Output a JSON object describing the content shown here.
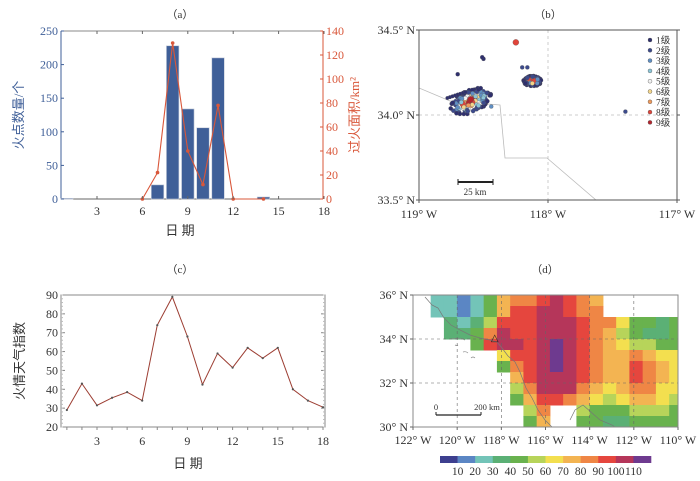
{
  "chart_data": [
    {
      "panel": "(a)",
      "type": "bar",
      "title": "（a）",
      "xlabel": "日  期",
      "ylabel": "火点数量/个",
      "y2label": "过火面积/km²",
      "x_ticks": [
        3,
        6,
        9,
        12,
        15,
        18
      ],
      "ylim": [
        0,
        250
      ],
      "y_ticks": [
        0,
        50,
        100,
        150,
        200,
        250
      ],
      "y2lim": [
        0,
        140
      ],
      "y2_ticks": [
        0,
        20,
        40,
        60,
        80,
        100,
        120,
        140
      ],
      "xlim": [
        0.7,
        18.3
      ],
      "series": [
        {
          "name": "火点数量",
          "type": "bar",
          "axis": "left",
          "color": "#3f5f98",
          "x": [
            1,
            7,
            8,
            9,
            10,
            11,
            14
          ],
          "values": [
            1,
            21,
            228,
            134,
            106,
            210,
            3
          ]
        },
        {
          "name": "过火面积",
          "type": "line",
          "axis": "right",
          "color": "#d9573a",
          "x": [
            6,
            7,
            8,
            9,
            10,
            11,
            12,
            14
          ],
          "values": [
            0,
            22,
            130,
            40,
            12,
            78,
            0,
            0
          ]
        }
      ],
      "left_axis_color": "#3f5f98",
      "right_axis_color": "#d9573a"
    },
    {
      "panel": "(b)",
      "type": "scatter",
      "title": "（b）",
      "xlabel": "",
      "ylabel": "",
      "xlim": [
        -119,
        -117
      ],
      "ylim": [
        33.5,
        34.5
      ],
      "x_ticks": [
        -119,
        -118,
        -117
      ],
      "x_tick_labels": [
        "119° W",
        "118° W",
        "117° W"
      ],
      "y_ticks": [
        33.5,
        34.0,
        34.5
      ],
      "y_tick_labels": [
        "33.5° N",
        "34.0° N",
        "34.5° N"
      ],
      "grid": true,
      "legend_position": "top-right",
      "legend": [
        {
          "label": "1级",
          "color": "#2e2f6e"
        },
        {
          "label": "2级",
          "color": "#3c4a8c"
        },
        {
          "label": "3级",
          "color": "#5f8fc4"
        },
        {
          "label": "4级",
          "color": "#8cc6d8"
        },
        {
          "label": "5级",
          "color": "#f2f2f2"
        },
        {
          "label": "6级",
          "color": "#f3d58a"
        },
        {
          "label": "7级",
          "color": "#ef9a5c"
        },
        {
          "label": "8级",
          "color": "#e0443a"
        },
        {
          "label": "9级",
          "color": "#b5242c"
        }
      ],
      "scale_bar_label": "25 km",
      "clusters": [
        {
          "lon": -118.6,
          "lat": 34.08,
          "levels": [
            1,
            2,
            3,
            4,
            5,
            6,
            7,
            8,
            9
          ],
          "extent_lon": 0.14,
          "extent_lat": 0.08
        },
        {
          "lon": -118.12,
          "lat": 34.2,
          "levels": [
            1,
            2,
            3,
            4,
            6,
            7,
            8
          ],
          "extent_lon": 0.07,
          "extent_lat": 0.03
        },
        {
          "lon": -118.25,
          "lat": 34.43,
          "levels": [
            8
          ],
          "extent_lon": 0.01,
          "extent_lat": 0.01
        }
      ],
      "isolated_points": [
        {
          "lon": -118.7,
          "lat": 34.24,
          "level": 1
        },
        {
          "lon": -118.5,
          "lat": 34.33,
          "level": 1
        },
        {
          "lon": -118.51,
          "lat": 34.34,
          "level": 1
        },
        {
          "lon": -118.2,
          "lat": 34.28,
          "level": 2
        },
        {
          "lon": -118.16,
          "lat": 34.28,
          "level": 2
        },
        {
          "lon": -117.4,
          "lat": 34.02,
          "level": 2
        },
        {
          "lon": -118.44,
          "lat": 34.05,
          "level": 3
        }
      ]
    },
    {
      "panel": "(c)",
      "type": "line",
      "title": "（c）",
      "xlabel": "日  期",
      "ylabel": "火情天气指数",
      "xlim": [
        0.5,
        18.5
      ],
      "ylim": [
        20,
        90
      ],
      "x_ticks": [
        3,
        6,
        9,
        12,
        15,
        18
      ],
      "y_ticks": [
        20,
        30,
        40,
        50,
        60,
        70,
        80,
        90
      ],
      "series": [
        {
          "name": "火情天气指数",
          "color": "#9c3d32",
          "x": [
            1,
            2,
            3,
            4,
            5,
            6,
            7,
            8,
            9,
            10,
            11,
            12,
            13,
            14,
            15,
            16,
            17,
            18
          ],
          "values": [
            29,
            43,
            31.5,
            35.5,
            38.5,
            34,
            74,
            89,
            68,
            42.5,
            59,
            51.5,
            62,
            56.5,
            62,
            40,
            34,
            30.5
          ]
        }
      ]
    },
    {
      "panel": "(d)",
      "type": "heatmap",
      "title": "（d）",
      "xlim": [
        -122,
        -110
      ],
      "ylim": [
        30,
        36
      ],
      "x_ticks": [
        -122,
        -120,
        -118,
        -116,
        -114,
        -112,
        -110
      ],
      "x_tick_labels": [
        "122° W",
        "120° W",
        "118° W",
        "116° W",
        "114° W",
        "112° W",
        "110° W"
      ],
      "y_ticks": [
        30,
        32,
        34,
        36
      ],
      "y_tick_labels": [
        "30° N",
        "32° N",
        "34° N",
        "36° N"
      ],
      "grid": true,
      "scale_bar": {
        "start_label": "0",
        "end_label": "200 km"
      },
      "colorbar": {
        "ticks": [
          10,
          20,
          30,
          40,
          50,
          60,
          70,
          80,
          90,
          100,
          110
        ],
        "colors": [
          "#3d3f8f",
          "#5b86c4",
          "#73c4b8",
          "#5bb075",
          "#69b24e",
          "#b7d45a",
          "#f3df4f",
          "#f3b452",
          "#ef8645",
          "#e5463e",
          "#b5365a",
          "#6e3a8f"
        ]
      },
      "marker": {
        "label": "△",
        "lon": -118.3,
        "lat": 34.05
      },
      "grid_cells": {
        "lon_edges": [
          -121.2,
          -120.6,
          -120.0,
          -119.4,
          -118.8,
          -118.2,
          -117.6,
          -117.0,
          -116.4,
          -115.8,
          -115.2,
          -114.6,
          -114.0,
          -113.4,
          -112.8,
          -112.2,
          -111.6,
          -111.0,
          -110.4,
          -110.0
        ],
        "lat_rows_top_down": [
          36,
          35.5,
          35,
          34.5,
          34,
          33.5,
          33,
          32.5,
          32,
          31.5,
          31,
          30.5,
          30
        ],
        "values": [
          [
            25,
            22,
            18,
            22,
            40,
            70,
            85,
            88,
            95,
            100,
            95,
            85,
            78,
            null,
            null,
            null,
            null,
            null,
            null
          ],
          [
            25,
            22,
            15,
            28,
            45,
            75,
            92,
            98,
            100,
            105,
            98,
            88,
            82,
            null,
            null,
            null,
            null,
            null,
            null
          ],
          [
            null,
            30,
            28,
            35,
            55,
            92,
            95,
            95,
            100,
            105,
            100,
            90,
            85,
            80,
            60,
            45,
            40,
            35,
            40
          ],
          [
            null,
            32,
            35,
            48,
            85,
            100,
            98,
            92,
            100,
            108,
            100,
            92,
            85,
            78,
            55,
            45,
            38,
            32,
            45
          ],
          [
            null,
            null,
            null,
            45,
            98,
            104,
            100,
            92,
            100,
            112,
            102,
            90,
            84,
            75,
            65,
            55,
            50,
            45,
            48
          ],
          [
            null,
            null,
            null,
            null,
            null,
            60,
            95,
            95,
            102,
            115,
            108,
            92,
            85,
            78,
            72,
            80,
            72,
            65,
            60
          ],
          [
            null,
            null,
            null,
            null,
            null,
            45,
            80,
            98,
            104,
            112,
            105,
            95,
            85,
            78,
            75,
            90,
            85,
            72,
            62
          ],
          [
            null,
            null,
            null,
            null,
            null,
            null,
            70,
            95,
            108,
            108,
            100,
            92,
            85,
            75,
            78,
            95,
            85,
            70,
            62
          ],
          [
            null,
            null,
            null,
            null,
            null,
            null,
            55,
            85,
            102,
            104,
            100,
            85,
            75,
            65,
            72,
            85,
            80,
            65,
            60
          ],
          [
            null,
            null,
            null,
            null,
            null,
            null,
            45,
            72,
            98,
            98,
            88,
            72,
            60,
            55,
            60,
            72,
            70,
            60,
            55
          ],
          [
            null,
            null,
            null,
            null,
            null,
            null,
            null,
            55,
            88,
            null,
            null,
            58,
            45,
            40,
            45,
            55,
            55,
            50,
            48
          ],
          [
            null,
            null,
            null,
            null,
            null,
            null,
            null,
            45,
            70,
            null,
            null,
            48,
            40,
            35,
            38,
            45,
            45,
            42,
            40
          ]
        ]
      }
    }
  ]
}
